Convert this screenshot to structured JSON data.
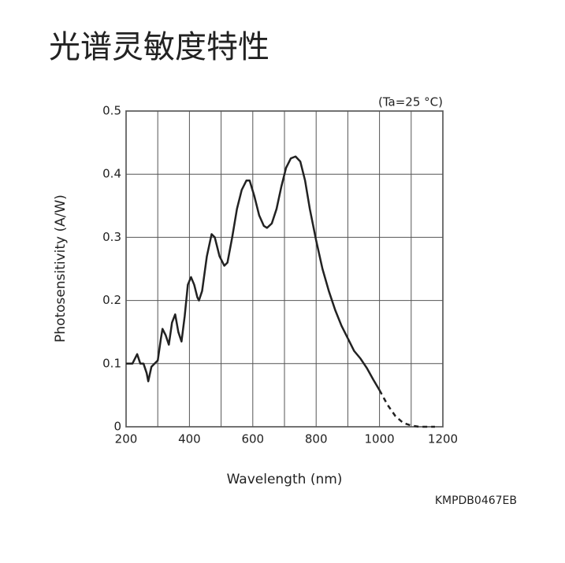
{
  "heading": "光谱灵敏度特性",
  "chart_data": {
    "type": "line",
    "annotation": "(Ta=25 °C)",
    "x_label": "Wavelength (nm)",
    "y_label": "Photosensitivity (A/W)",
    "code": "KMPDB0467EB",
    "x": [
      200,
      210,
      220,
      235,
      245,
      255,
      265,
      270,
      280,
      290,
      300,
      310,
      315,
      325,
      335,
      345,
      355,
      365,
      375,
      385,
      395,
      405,
      415,
      425,
      430,
      440,
      455,
      470,
      480,
      495,
      510,
      520,
      535,
      550,
      565,
      580,
      590,
      605,
      620,
      635,
      645,
      660,
      675,
      690,
      705,
      720,
      735,
      750,
      765,
      780,
      800,
      820,
      840,
      860,
      880,
      900,
      920,
      940,
      960,
      980,
      1000,
      1025,
      1050,
      1075,
      1100,
      1125,
      1150,
      1175
    ],
    "series": [
      {
        "color": "#222222",
        "dashed": false,
        "values": [
          0.1,
          0.1,
          0.1,
          0.115,
          0.1,
          0.1,
          0.085,
          0.072,
          0.095,
          0.1,
          0.105,
          0.14,
          0.155,
          0.145,
          0.13,
          0.165,
          0.178,
          0.15,
          0.135,
          0.175,
          0.225,
          0.237,
          0.225,
          0.205,
          0.2,
          0.215,
          0.27,
          0.305,
          0.3,
          0.27,
          0.255,
          0.26,
          0.3,
          0.345,
          0.375,
          0.39,
          0.39,
          0.365,
          0.335,
          0.318,
          0.315,
          0.322,
          0.345,
          0.38,
          0.41,
          0.425,
          0.428,
          0.42,
          0.39,
          0.345,
          0.295,
          0.25,
          0.215,
          0.185,
          0.16,
          0.14,
          0.12,
          0.108,
          0.093,
          0.075,
          0.058,
          null,
          null,
          null,
          null,
          null,
          null,
          null
        ]
      },
      {
        "color": "#222222",
        "dashed": true,
        "values": [
          null,
          null,
          null,
          null,
          null,
          null,
          null,
          null,
          null,
          null,
          null,
          null,
          null,
          null,
          null,
          null,
          null,
          null,
          null,
          null,
          null,
          null,
          null,
          null,
          null,
          null,
          null,
          null,
          null,
          null,
          null,
          null,
          null,
          null,
          null,
          null,
          null,
          null,
          null,
          null,
          null,
          null,
          null,
          null,
          null,
          null,
          null,
          null,
          null,
          null,
          null,
          null,
          null,
          null,
          null,
          null,
          null,
          null,
          null,
          null,
          0.058,
          0.035,
          0.017,
          0.006,
          0.002,
          0,
          0,
          0
        ]
      }
    ],
    "xlim": [
      200,
      1200
    ],
    "ylim": [
      0,
      0.5
    ],
    "xticks": [
      200,
      400,
      600,
      800,
      1000,
      1200
    ],
    "yticks": [
      0,
      0.1,
      0.2,
      0.3,
      0.4,
      0.5
    ],
    "xgrid": [
      300,
      500,
      700,
      900,
      1100
    ],
    "grid": true
  }
}
